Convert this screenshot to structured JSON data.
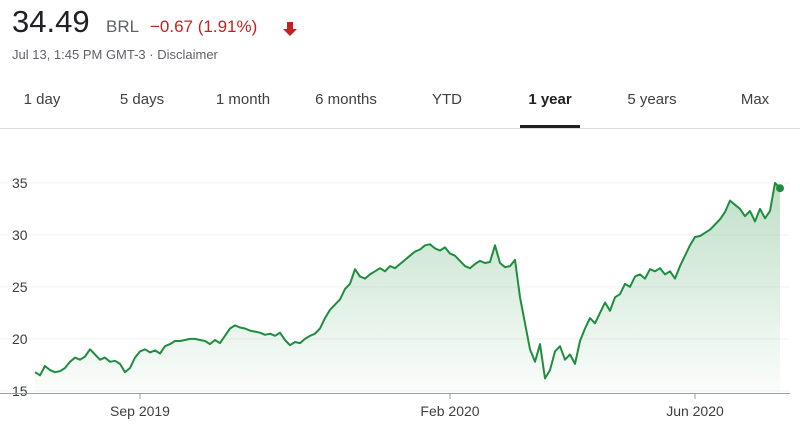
{
  "header": {
    "price": "34.49",
    "currency": "BRL",
    "change": "−0.67 (1.91%)",
    "timestamp": "Jul 13, 1:45 PM GMT-3 · Disclaimer"
  },
  "tabs": [
    "1 day",
    "5 days",
    "1 month",
    "6 months",
    "YTD",
    "1 year",
    "5 years",
    "Max"
  ],
  "selected_tab": 5,
  "chart_data": {
    "type": "line",
    "color": "#1e8e3e",
    "xlim": [
      0,
      149
    ],
    "xticks": [
      {
        "value": 21,
        "label": "Sep 2019"
      },
      {
        "value": 83,
        "label": "Feb 2020"
      },
      {
        "value": 132,
        "label": "Jun 2020"
      }
    ],
    "ylim": [
      14.8,
      38.8
    ],
    "yticks": [
      15,
      20,
      25,
      30,
      35
    ],
    "grid": true,
    "series": [
      {
        "values": [
          16.8,
          16.5,
          17.4,
          17.0,
          16.8,
          16.9,
          17.2,
          17.8,
          18.2,
          18.0,
          18.3,
          19.0,
          18.5,
          18.0,
          18.2,
          17.8,
          17.9,
          17.6,
          16.8,
          17.2,
          18.2,
          18.8,
          19.0,
          18.7,
          18.9,
          18.6,
          19.3,
          19.5,
          19.8,
          19.8,
          19.9,
          20.0,
          20.0,
          19.9,
          19.8,
          19.5,
          19.9,
          19.6,
          20.3,
          21.0,
          21.3,
          21.1,
          21.0,
          20.8,
          20.7,
          20.6,
          20.4,
          20.5,
          20.3,
          20.6,
          19.9,
          19.4,
          19.7,
          19.6,
          20.0,
          20.3,
          20.5,
          21.0,
          22.0,
          22.8,
          23.3,
          23.8,
          24.8,
          25.3,
          26.7,
          26.0,
          25.8,
          26.2,
          26.5,
          26.8,
          26.5,
          27.0,
          26.8,
          27.2,
          27.6,
          28.0,
          28.4,
          28.6,
          29.0,
          29.1,
          28.7,
          28.5,
          28.8,
          28.2,
          28.0,
          27.5,
          27.0,
          26.8,
          27.2,
          27.5,
          27.3,
          27.4,
          29.0,
          27.3,
          26.9,
          27.0,
          27.6,
          24.0,
          21.5,
          19.0,
          17.8,
          19.5,
          16.2,
          17.0,
          18.8,
          19.3,
          18.0,
          18.5,
          17.6,
          19.8,
          21.0,
          22.0,
          21.5,
          22.5,
          23.5,
          22.7,
          24.0,
          24.3,
          25.3,
          25.0,
          26.0,
          26.2,
          25.8,
          26.7,
          26.5,
          26.8,
          26.2,
          26.5,
          25.8,
          27.0,
          28.0,
          29.0,
          29.8,
          29.9,
          30.2,
          30.5,
          31.0,
          31.5,
          32.2,
          33.3,
          32.9,
          32.5,
          31.8,
          32.3,
          31.3,
          32.5,
          31.6,
          32.3,
          35.0,
          34.49
        ]
      }
    ]
  }
}
